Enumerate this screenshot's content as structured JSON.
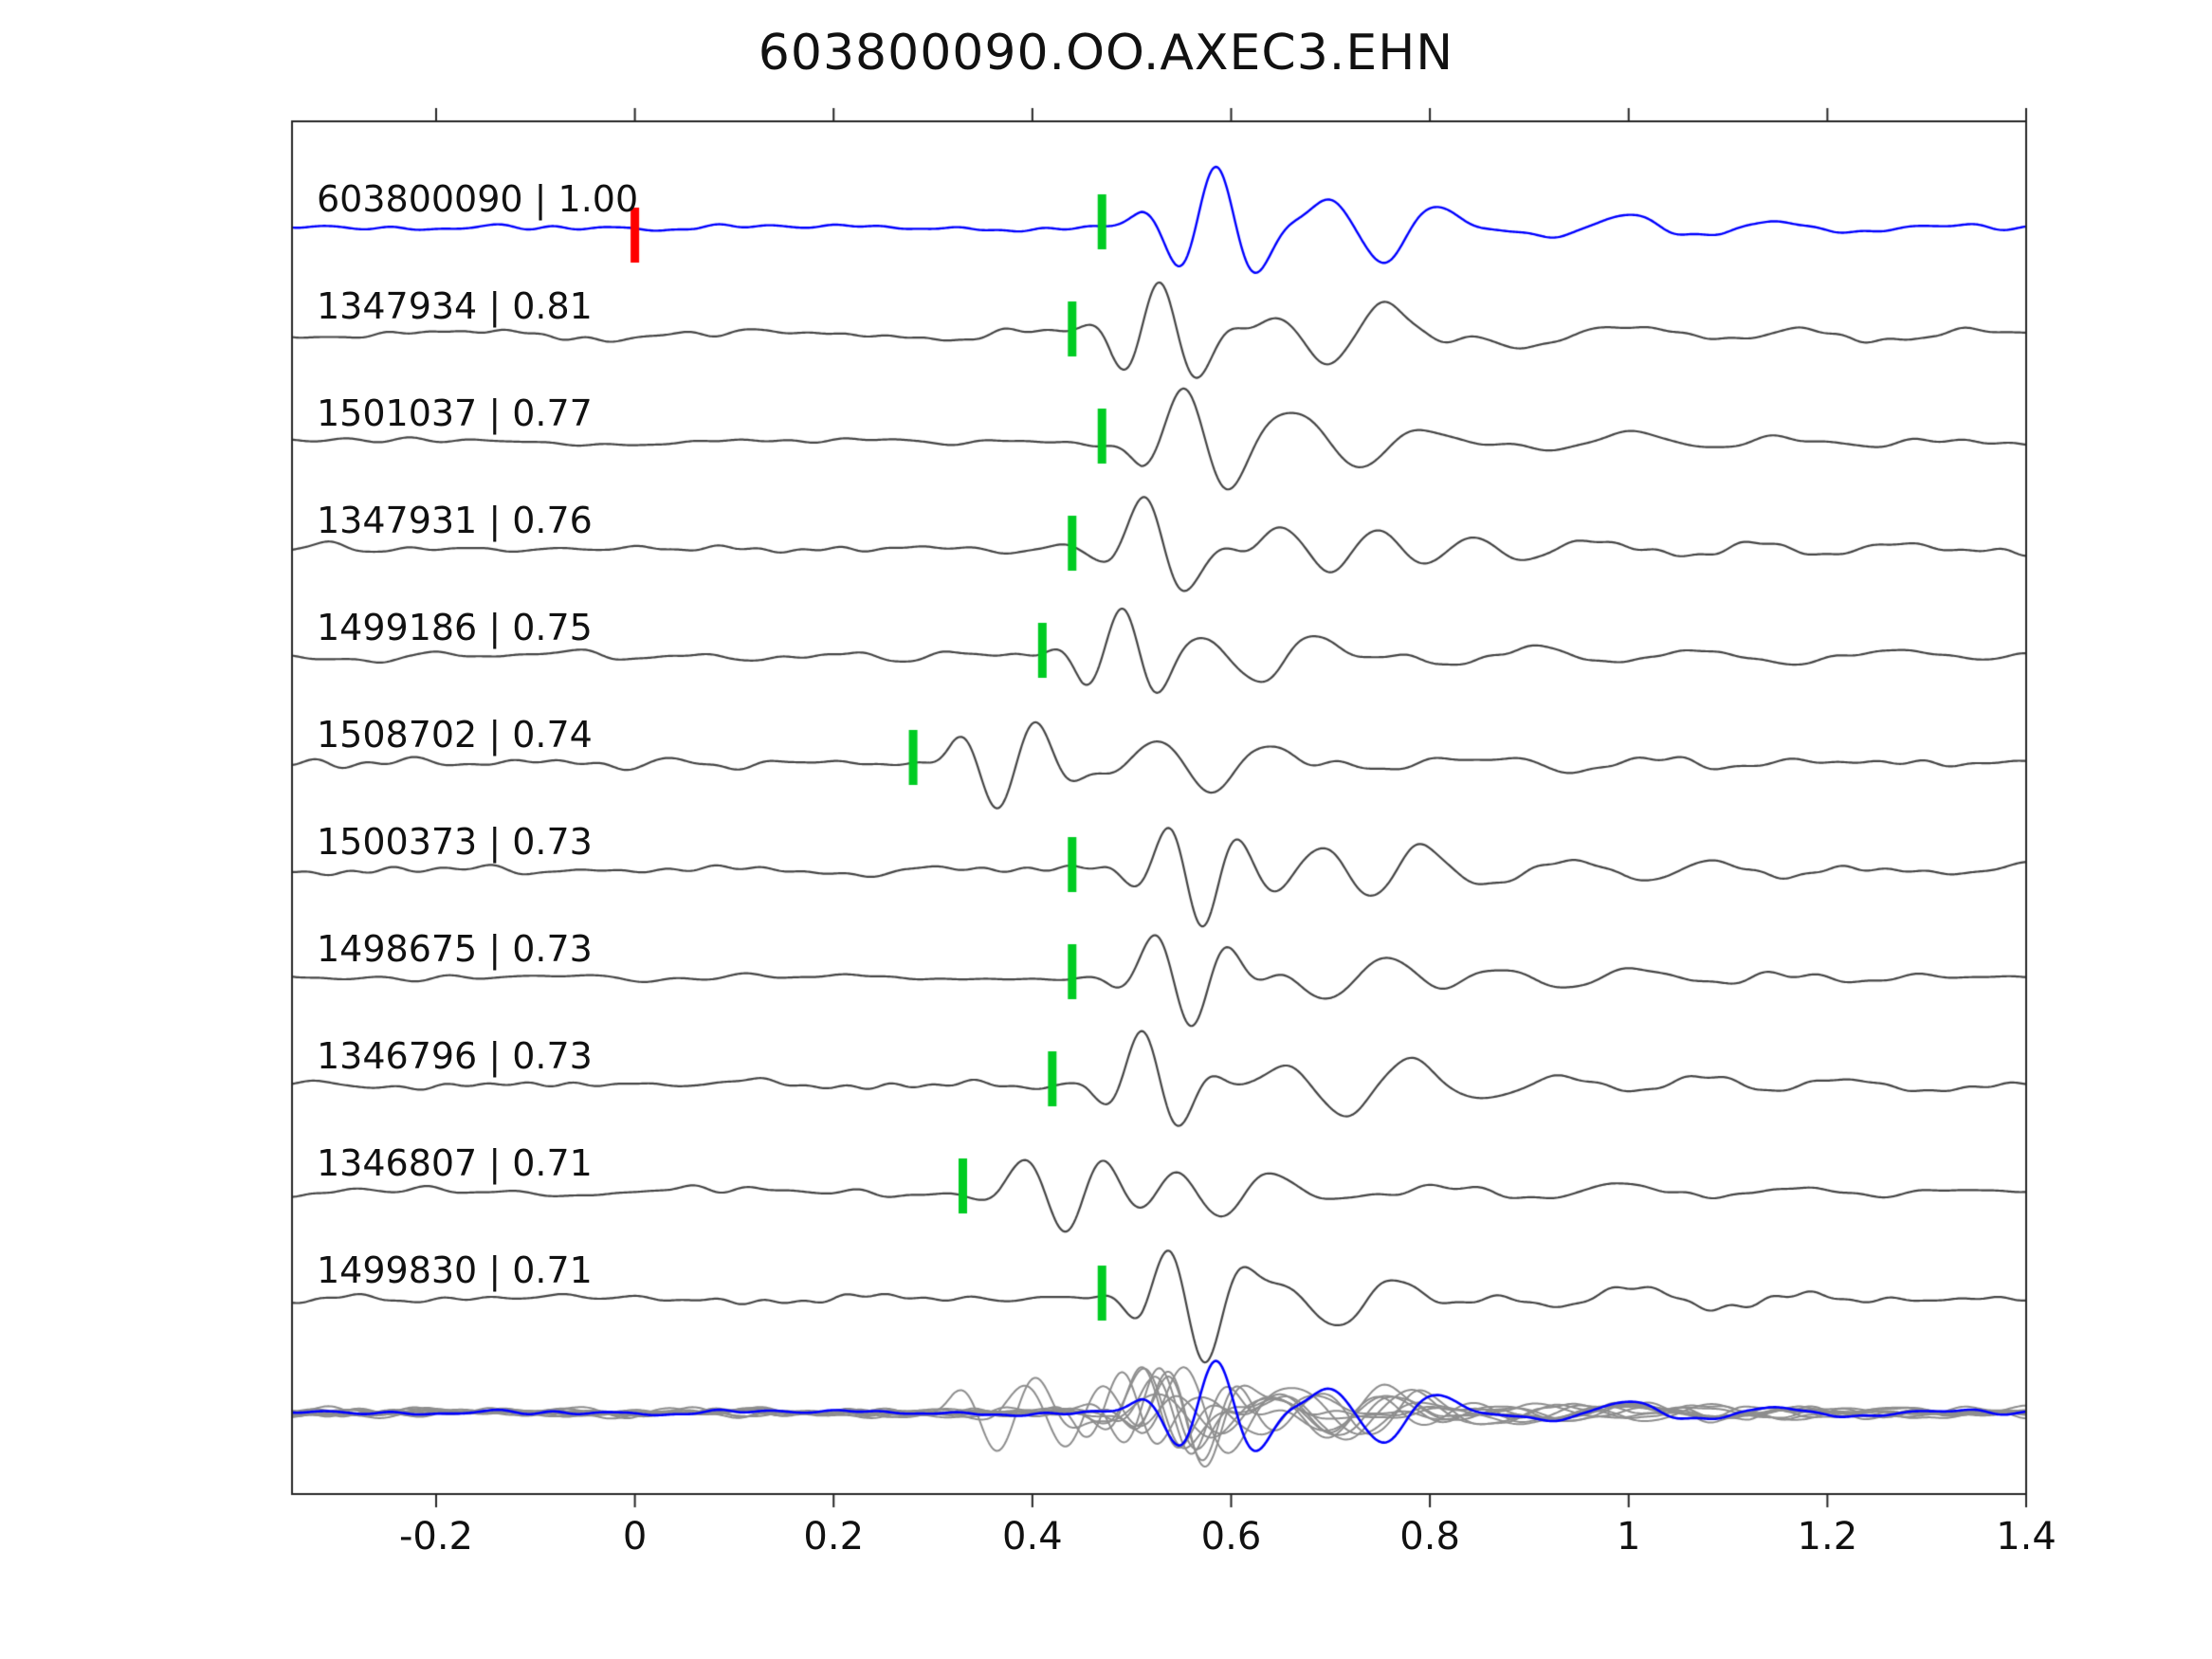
{
  "title": "603800090.OO.AXEC3.EHN",
  "chart_data": {
    "type": "line",
    "title": "603800090.OO.AXEC3.EHN",
    "subtitle": "",
    "xlabel": "",
    "ylabel": "",
    "grid": false,
    "legend": null,
    "xlim": [
      -0.345,
      1.4
    ],
    "xticks": [
      -0.2,
      0,
      0.2,
      0.4,
      0.6,
      0.8,
      1,
      1.2,
      1.4
    ],
    "xtick_labels": [
      "-0.2",
      "0",
      "0.2",
      "0.4",
      "0.6",
      "0.8",
      "1",
      "1.2",
      "1.4"
    ],
    "colors": {
      "template_trace": "#0000ff",
      "detection_trace": "#454545",
      "overlay_trace": "#8e8e8e",
      "pick_mark": "#00cc22",
      "template_mark": "#ff0000",
      "frame": "#262626",
      "text": "#111111"
    },
    "traces": [
      {
        "id": "603800090",
        "correlation": "1.00",
        "label": "603800090 | 1.00",
        "pick_time": 0.47,
        "is_template": true,
        "template_origin_time": 0.0
      },
      {
        "id": "1347934",
        "correlation": "0.81",
        "label": "1347934 | 0.81",
        "pick_time": 0.44,
        "is_template": false
      },
      {
        "id": "1501037",
        "correlation": "0.77",
        "label": "1501037 | 0.77",
        "pick_time": 0.47,
        "is_template": false
      },
      {
        "id": "1347931",
        "correlation": "0.76",
        "label": "1347931 | 0.76",
        "pick_time": 0.44,
        "is_template": false
      },
      {
        "id": "1499186",
        "correlation": "0.75",
        "label": "1499186 | 0.75",
        "pick_time": 0.41,
        "is_template": false
      },
      {
        "id": "1508702",
        "correlation": "0.74",
        "label": "1508702 | 0.74",
        "pick_time": 0.28,
        "is_template": false
      },
      {
        "id": "1500373",
        "correlation": "0.73",
        "label": "1500373 | 0.73",
        "pick_time": 0.44,
        "is_template": false
      },
      {
        "id": "1498675",
        "correlation": "0.73",
        "label": "1498675 | 0.73",
        "pick_time": 0.44,
        "is_template": false
      },
      {
        "id": "1346796",
        "correlation": "0.73",
        "label": "1346796 | 0.73",
        "pick_time": 0.42,
        "is_template": false
      },
      {
        "id": "1346807",
        "correlation": "0.71",
        "label": "1346807 | 0.71",
        "pick_time": 0.33,
        "is_template": false
      },
      {
        "id": "1499830",
        "correlation": "0.71",
        "label": "1499830 | 0.71",
        "pick_time": 0.47,
        "is_template": false
      }
    ],
    "overlay_row": {
      "description": "All detection traces overlaid in gray with the blue template trace on top",
      "includes_template": true
    }
  }
}
